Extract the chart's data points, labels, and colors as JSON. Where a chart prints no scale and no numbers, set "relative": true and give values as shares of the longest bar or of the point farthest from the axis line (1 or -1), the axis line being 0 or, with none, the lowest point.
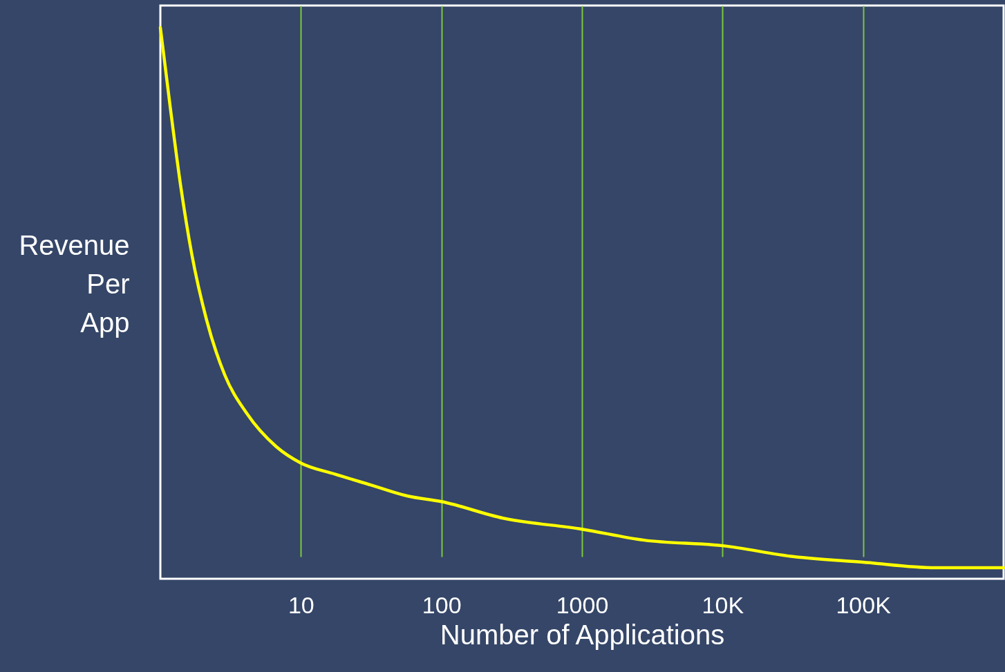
{
  "chart_data": {
    "type": "line",
    "xlabel": "Number of Applications",
    "ylabel": "Revenue Per App",
    "relative": true,
    "log": "x",
    "xlim": [
      1,
      1000000
    ],
    "xticks": [
      {
        "value": 10,
        "label": "10"
      },
      {
        "value": 100,
        "label": "100"
      },
      {
        "value": 1000,
        "label": "1000"
      },
      {
        "value": 10000,
        "label": "10K"
      },
      {
        "value": 100000,
        "label": "100K"
      }
    ],
    "x": [
      1,
      1.17,
      1.4,
      1.67,
      2.13,
      2.87,
      4.12,
      6.66,
      10,
      17.4,
      31.6,
      57.6,
      100,
      274,
      1000,
      2770,
      10000,
      32300,
      100000,
      327000,
      1000000
    ],
    "series": [
      {
        "color": "#ffff00",
        "values": [
          1,
          0.86,
          0.71,
          0.59,
          0.47,
          0.37,
          0.3,
          0.24,
          0.21,
          0.19,
          0.17,
          0.15,
          0.14,
          0.11,
          0.09,
          0.07,
          0.06,
          0.04,
          0.03,
          0.02,
          0.02
        ]
      }
    ],
    "grid": "x",
    "tick_labels": "x",
    "marker": "none",
    "line_style": "solid"
  }
}
